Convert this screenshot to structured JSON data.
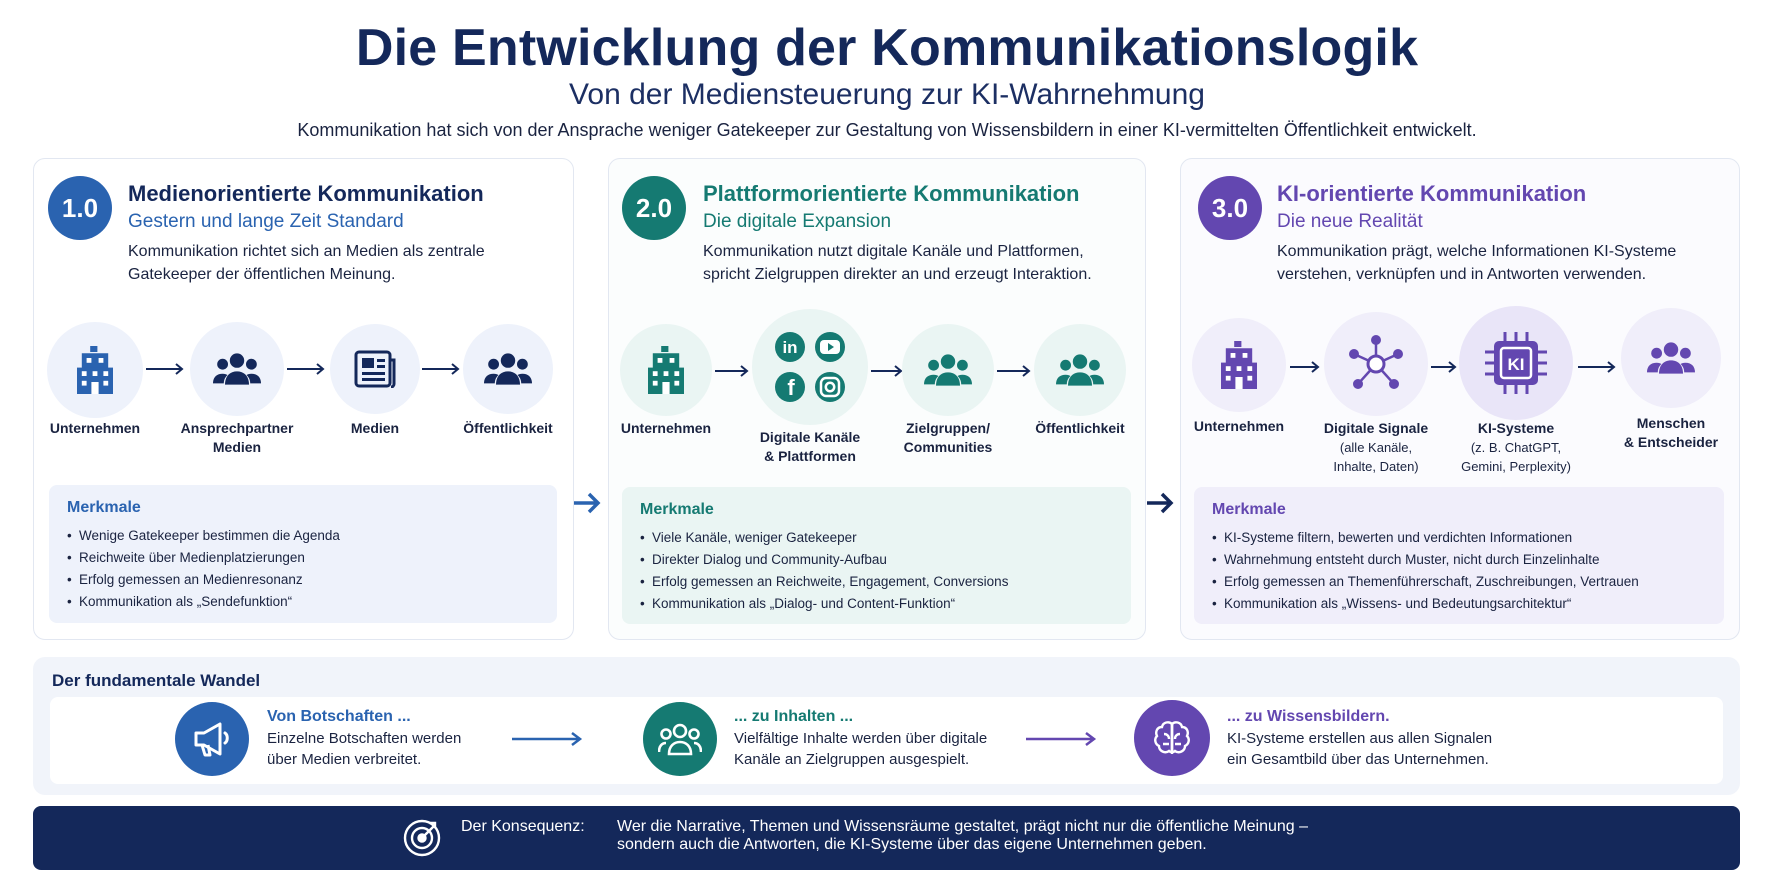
{
  "header": {
    "title": "Die Entwicklung der Kommunikationslogik",
    "subtitle": "Von der Mediensteuerung zur KI-Wahrnehmung",
    "intro": "Kommunikation hat sich von der Ansprache weniger Gatekeeper zur Gestaltung von Wissensbildern in einer KI-vermittelten Öffentlichkeit entwickelt."
  },
  "colors": {
    "blue": "#2a63b0",
    "teal": "#157a72",
    "purple": "#6347b0",
    "navy": "#14285a"
  },
  "panels": [
    {
      "badge": "1.0",
      "title": "Medienorientierte Kommunikation",
      "subtitle": "Gestern und lange Zeit Standard",
      "desc_lines": [
        "Kommunikation richtet sich an Medien als zentrale",
        "Gatekeeper der öffentlichen Meinung."
      ],
      "nodes": [
        {
          "label": "Unternehmen",
          "icon": "building-icon"
        },
        {
          "label": "Ansprechpartner",
          "label2": "Medien",
          "icon": "people-icon"
        },
        {
          "label": "Medien",
          "icon": "newspaper-icon"
        },
        {
          "label": "Öffentlichkeit",
          "icon": "people-icon"
        }
      ],
      "features_title": "Merkmale",
      "features": [
        "Wenige Gatekeeper bestimmen die Agenda",
        "Reichweite über Medienplatzierungen",
        "Erfolg gemessen an Medienresonanz",
        "Kommunikation als „Sendefunktion“"
      ]
    },
    {
      "badge": "2.0",
      "title": "Plattformorientierte Kommunikation",
      "subtitle": "Die digitale Expansion",
      "desc_lines": [
        "Kommunikation nutzt digitale Kanäle und Plattformen,",
        "spricht Zielgruppen direkter an und erzeugt Interaktion."
      ],
      "nodes": [
        {
          "label": "Unternehmen",
          "icon": "building-icon"
        },
        {
          "label": "Digitale Kanäle",
          "label2": "& Plattformen",
          "icon": "social-media-icons"
        },
        {
          "label": "Zielgruppen/",
          "label2": "Communities",
          "icon": "people-icon"
        },
        {
          "label": "Öffentlichkeit",
          "icon": "people-icon"
        }
      ],
      "features_title": "Merkmale",
      "features": [
        "Viele Kanäle, weniger Gatekeeper",
        "Direkter Dialog und Community-Aufbau",
        "Erfolg gemessen an Reichweite, Engagement, Conversions",
        "Kommunikation als „Dialog- und Content-Funktion“"
      ]
    },
    {
      "badge": "3.0",
      "title": "KI-orientierte Kommunikation",
      "subtitle": "Die neue Realität",
      "desc_lines": [
        "Kommunikation prägt, welche Informationen KI-Systeme",
        "verstehen, verknüpfen und in Antworten verwenden."
      ],
      "nodes": [
        {
          "label": "Unternehmen",
          "icon": "building-icon"
        },
        {
          "label": "Digitale Signale",
          "sub1": "(alle Kanäle,",
          "sub2": "Inhalte, Daten)",
          "icon": "network-icon"
        },
        {
          "label": "KI-Systeme",
          "sub1": "(z. B. ChatGPT,",
          "sub2": "Gemini, Perplexity)",
          "icon": "ai-chip-icon",
          "chip": "KI"
        },
        {
          "label": "Menschen",
          "label2": "& Entscheider",
          "icon": "people-icon"
        }
      ],
      "features_title": "Merkmale",
      "features": [
        "KI-Systeme filtern, bewerten und verdichten Informationen",
        "Wahrnehmung entsteht durch Muster, nicht durch Einzelinhalte",
        "Erfolg gemessen an Themenführerschaft, Zuschreibungen, Vertrauen",
        "Kommunikation als „Wissens- und Bedeutungsarchitektur“"
      ]
    }
  ],
  "wandel": {
    "title": "Der fundamentale Wandel",
    "steps": [
      {
        "head": "Von Botschaften ...",
        "line1": "Einzelne Botschaften werden",
        "line2": "über Medien verbreitet.",
        "icon": "megaphone-icon"
      },
      {
        "head": "... zu Inhalten ...",
        "line1": "Vielfältige Inhalte werden über digitale",
        "line2": "Kanäle an Zielgruppen ausgespielt.",
        "icon": "group-icon"
      },
      {
        "head": "... zu Wissensbildern.",
        "line1": "KI-Systeme erstellen aus allen Signalen",
        "line2": "ein Gesamtbild über das Unternehmen.",
        "icon": "brain-icon"
      }
    ]
  },
  "konsequenz": {
    "label": "Der Konsequenz:",
    "line1": "Wer die Narrative, Themen und Wissensräume gestaltet, prägt nicht nur die öffentliche Meinung –",
    "line2": "sondern auch die Antworten, die KI-Systeme über das eigene Unternehmen geben.",
    "icon": "target-icon"
  }
}
